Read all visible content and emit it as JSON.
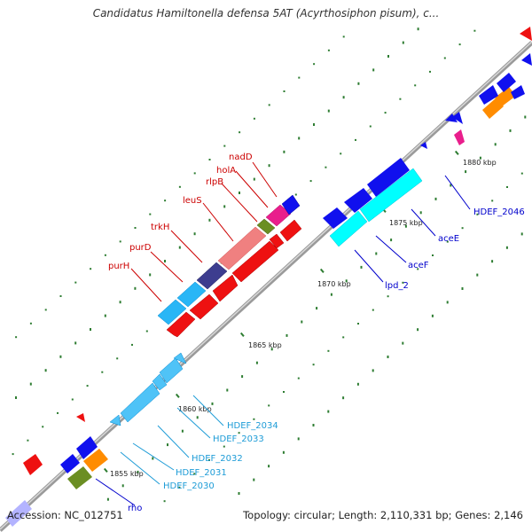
{
  "title": "Candidatus Hamiltonella defensa 5AT (Acyrthosiphon pisum), c...",
  "footer": {
    "accession": "Accession: NC_012751",
    "summary": "Topology: circular; Length: 2,110,331 bp; Genes: 2,146"
  },
  "colors": {
    "backbone": "#a8a8a8",
    "tick": "#2e7d32",
    "red_label": "#cc0000",
    "blue_label": "#0000cc",
    "cyan_label": "#1e9cd7"
  },
  "ruler": [
    "1855 kbp",
    "1860 kbp",
    "1865 kbp",
    "1870 kbp",
    "1875 kbp",
    "1880 kbp"
  ],
  "genes_red": [
    {
      "label": "nadD"
    },
    {
      "label": "holA"
    },
    {
      "label": "rlpB"
    },
    {
      "label": "leuS"
    },
    {
      "label": "trkH"
    },
    {
      "label": "purD"
    },
    {
      "label": "purH"
    }
  ],
  "genes_blue": [
    {
      "label": "aceE"
    },
    {
      "label": "aceF"
    },
    {
      "label": "lpd_2"
    },
    {
      "label": "HDEF_2046"
    },
    {
      "label": "rho"
    }
  ],
  "genes_cyan": [
    {
      "label": "HDEF_2034"
    },
    {
      "label": "HDEF_2033"
    },
    {
      "label": "HDEF_2032"
    },
    {
      "label": "HDEF_2031"
    },
    {
      "label": "HDEF_2030"
    }
  ]
}
